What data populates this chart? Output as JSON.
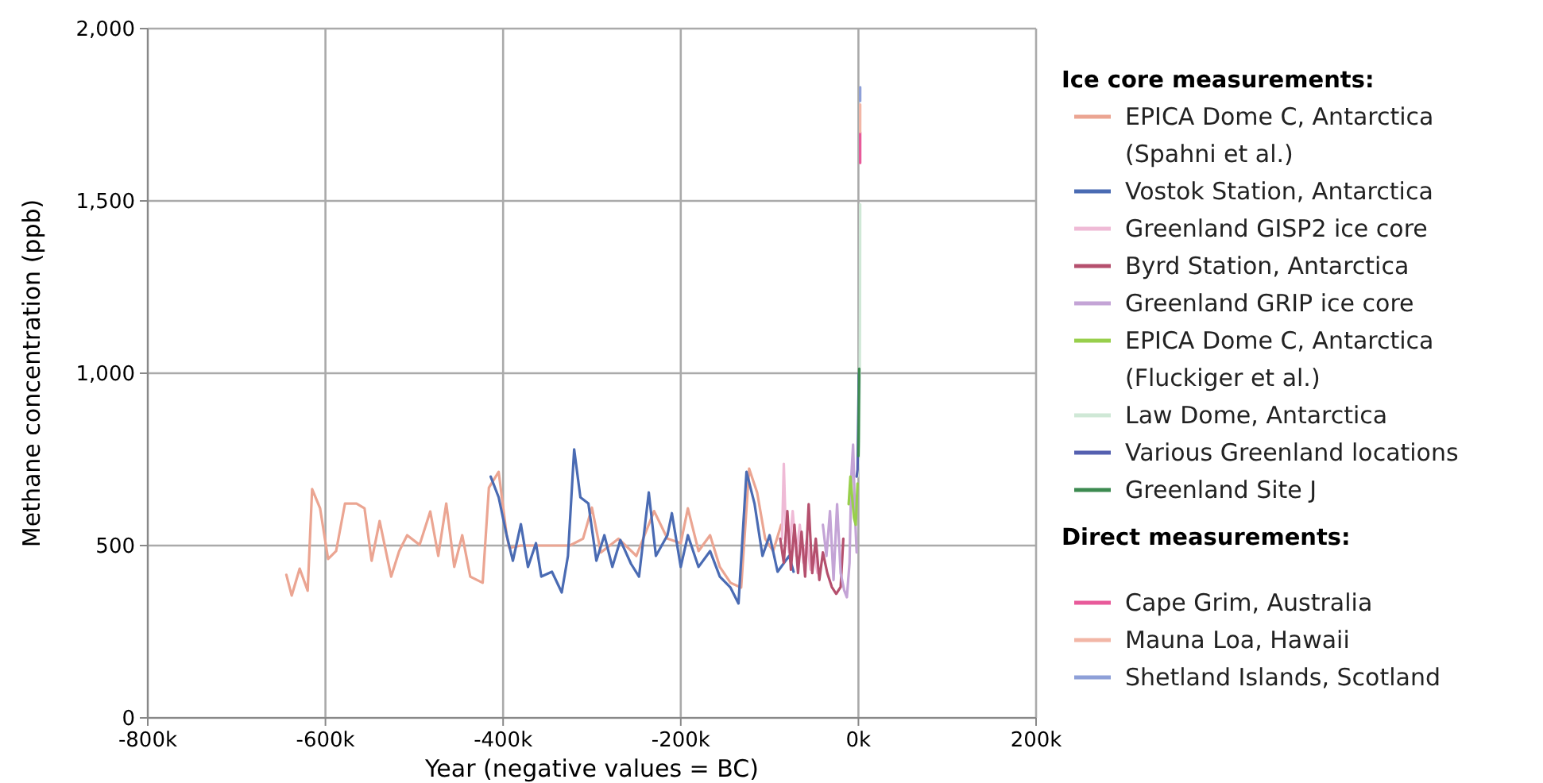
{
  "chart_data": {
    "type": "line",
    "xlabel": "Year (negative values = BC)",
    "ylabel": "Methane concentration (ppb)",
    "legend_title": "Ice core measurements:",
    "annotations": [
      "Direct measurements:"
    ],
    "xlim": [
      -800,
      200
    ],
    "xticks": [
      {
        "value": -800,
        "label": "-800k"
      },
      {
        "value": -600,
        "label": "-600k"
      },
      {
        "value": -400,
        "label": "-400k"
      },
      {
        "value": -200,
        "label": "-200k"
      },
      {
        "value": 0,
        "label": "0k"
      },
      {
        "value": 200,
        "label": "200k"
      }
    ],
    "ylim": [
      0,
      2000
    ],
    "yticks": [
      0,
      500,
      {
        "value": 1000,
        "label": "1,000"
      },
      {
        "value": 1500,
        "label": "1,500"
      },
      {
        "value": 2000,
        "label": "2,000"
      }
    ],
    "grid": true,
    "legend": "right",
    "marker": "none",
    "line_style": "solid",
    "series": [
      {
        "name": "EPICA Dome C, Antarctica (Spahni et al.)",
        "color": "#eba592",
        "x": [
          -644,
          -638,
          -629,
          -620,
          -615,
          -606,
          -597,
          -588,
          -578,
          -565,
          -556,
          -548,
          -539,
          -526,
          -517,
          -508,
          -494,
          -482,
          -473,
          -464,
          -455,
          -446,
          -437,
          -423,
          -416,
          -405,
          -396,
          -393,
          -380,
          -340,
          -325,
          -310,
          -300,
          -290,
          -270,
          -250,
          -230,
          -215,
          -200,
          -192,
          -180,
          -167,
          -156,
          -144,
          -132,
          -123,
          -114,
          -105,
          -96,
          -87
        ],
        "values": [
          415,
          355,
          433,
          369,
          664,
          608,
          461,
          484,
          622,
          622,
          608,
          456,
          571,
          410,
          484,
          530,
          502,
          599,
          470,
          622,
          438,
          530,
          410,
          392,
          668,
          714,
          530,
          493,
          500,
          500,
          500,
          520,
          610,
          480,
          520,
          470,
          600,
          520,
          507,
          608,
          484,
          530,
          438,
          392,
          378,
          723,
          654,
          520,
          484,
          560
        ]
      },
      {
        "name": "Vostok Station, Antarctica",
        "color": "#4a6bb3",
        "x": [
          -414,
          -405,
          -396,
          -389,
          -380,
          -372,
          -363,
          -357,
          -345,
          -334,
          -327,
          -320,
          -313,
          -304,
          -295,
          -286,
          -277,
          -268,
          -256,
          -247,
          -236,
          -228,
          -215,
          -210,
          -200,
          -192,
          -180,
          -167,
          -156,
          -144,
          -135,
          -126,
          -117,
          -108,
          -100,
          -91,
          -78,
          -73
        ],
        "values": [
          700,
          640,
          530,
          456,
          562,
          438,
          507,
          410,
          424,
          364,
          470,
          779,
          640,
          622,
          456,
          530,
          438,
          516,
          447,
          410,
          654,
          470,
          530,
          594,
          438,
          530,
          438,
          484,
          410,
          378,
          332,
          714,
          622,
          470,
          530,
          424,
          470,
          424
        ]
      },
      {
        "name": "Greenland GISP2 ice core",
        "color": "#efbad6",
        "x": [
          -86,
          -84,
          -82,
          -78,
          -74,
          -70,
          -66,
          -62,
          -58,
          -54,
          -50,
          -46
        ],
        "values": [
          520,
          737,
          560,
          480,
          600,
          470,
          560,
          450,
          520,
          430,
          480,
          420
        ]
      },
      {
        "name": "Byrd Station, Antarctica",
        "color": "#b5506e",
        "x": [
          -88,
          -84,
          -80,
          -76,
          -72,
          -68,
          -64,
          -60,
          -56,
          -52,
          -48,
          -44,
          -40,
          -35,
          -30,
          -25,
          -20,
          -17
        ],
        "values": [
          520,
          450,
          600,
          430,
          560,
          420,
          540,
          410,
          620,
          420,
          520,
          400,
          480,
          420,
          380,
          360,
          380,
          520
        ]
      },
      {
        "name": "Greenland GRIP ice core",
        "color": "#c4a4d6",
        "x": [
          -40,
          -36,
          -32,
          -28,
          -24,
          -20,
          -16,
          -13,
          -10,
          -8,
          -6,
          -4,
          -2
        ],
        "values": [
          560,
          470,
          600,
          400,
          620,
          420,
          370,
          350,
          450,
          700,
          793,
          600,
          480
        ]
      },
      {
        "name": "EPICA Dome C, Antarctica (Fluckiger et al.)",
        "color": "#98cf4c",
        "x": [
          -11,
          -9,
          -7,
          -5,
          -3,
          -2,
          -1
        ],
        "values": [
          620,
          700,
          640,
          580,
          560,
          620,
          680
        ]
      },
      {
        "name": "Law Dome, Antarctica",
        "color": "#cfe8d6",
        "x": [
          -1,
          0,
          1,
          1.5,
          1.8,
          2
        ],
        "values": [
          700,
          740,
          800,
          1000,
          1200,
          1490
        ]
      },
      {
        "name": "Various Greenland locations",
        "color": "#5560b0",
        "x": [
          -2,
          -1,
          0.5
        ],
        "values": [
          700,
          720,
          1000
        ]
      },
      {
        "name": "Greenland Site J",
        "color": "#3c8a50",
        "x": [
          0,
          0.3,
          0.6,
          0.9
        ],
        "values": [
          760,
          850,
          950,
          1013
        ]
      },
      {
        "name": "Cape Grim, Australia",
        "color": "#e85a9a",
        "x": [
          1.98,
          2
        ],
        "values": [
          1610,
          1700
        ]
      },
      {
        "name": "Mauna Loa, Hawaii",
        "color": "#f2b6a6",
        "x": [
          1.98,
          2
        ],
        "values": [
          1700,
          1780
        ]
      },
      {
        "name": "Shetland Islands, Scotland",
        "color": "#8ea0d8",
        "x": [
          1.98,
          2
        ],
        "values": [
          1790,
          1830
        ]
      }
    ]
  }
}
